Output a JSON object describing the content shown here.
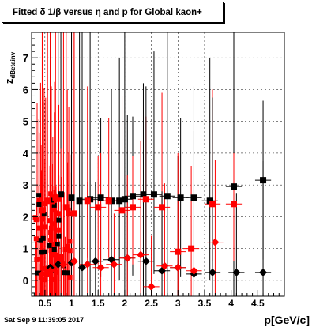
{
  "title": "Fitted δ 1/β versus η and p for Global kaon+",
  "timestamp": "Sat Sep  9 11:39:05 2017",
  "chart_data": {
    "type": "scatter",
    "title": "Fitted δ 1/β versus η and p for Global kaon+",
    "xlabel": "p[GeV/c]",
    "ylabel": "z_dBetainv",
    "xlim": [
      0.25,
      5.0
    ],
    "ylim": [
      -0.5,
      7.8
    ],
    "xticks": [
      "0.5",
      "1",
      "1.5",
      "2",
      "2.5",
      "3",
      "3.5",
      "4",
      "4.5"
    ],
    "yticks": [
      "0",
      "1",
      "2",
      "3",
      "4",
      "5",
      "6",
      "7"
    ],
    "grid": true,
    "series": [
      {
        "marker": "square",
        "color": "#000000",
        "x": [
          0.8,
          1.0,
          1.15,
          1.35,
          1.55,
          1.75,
          1.9,
          2.0,
          2.15,
          2.35,
          2.55,
          2.8,
          3.05,
          3.3,
          3.6,
          4.05,
          4.6
        ],
        "y": [
          2.7,
          2.6,
          2.5,
          2.55,
          2.6,
          2.5,
          2.5,
          2.55,
          2.65,
          2.7,
          2.7,
          2.65,
          2.6,
          2.6,
          2.5,
          2.95,
          3.15
        ]
      },
      {
        "marker": "square",
        "color": "#ff0000",
        "x": [
          0.45,
          0.55,
          0.7,
          0.9,
          1.05,
          1.3,
          1.5,
          1.7,
          1.95,
          2.15,
          2.4,
          2.7,
          3.0,
          3.25,
          3.65,
          4.05
        ],
        "y": [
          2.2,
          2.5,
          2.6,
          2.3,
          2.1,
          2.5,
          2.3,
          2.5,
          2.2,
          2.3,
          2.55,
          2.3,
          0.9,
          1.0,
          2.4,
          2.4
        ]
      },
      {
        "marker": "diamond",
        "color": "#000000",
        "x": [
          0.6,
          0.75,
          1.0,
          1.2,
          1.45,
          1.75,
          2.05,
          2.4,
          2.7,
          3.0,
          3.3,
          3.65,
          4.1,
          4.6
        ],
        "y": [
          0.4,
          0.5,
          0.55,
          0.4,
          0.6,
          0.65,
          0.7,
          0.6,
          0.3,
          0.4,
          0.2,
          0.25,
          0.25,
          0.25
        ]
      },
      {
        "marker": "diamond",
        "color": "#ff0000",
        "x": [
          0.45,
          0.6,
          0.85,
          1.05,
          1.3,
          1.55,
          1.8,
          2.05,
          2.3,
          2.5,
          2.75,
          3.0,
          3.3,
          3.7
        ],
        "y": [
          0.2,
          0.3,
          0.5,
          0.6,
          0.5,
          0.4,
          0.5,
          0.7,
          0.8,
          -0.2,
          0.45,
          0.4,
          0.3,
          1.2
        ]
      }
    ]
  }
}
